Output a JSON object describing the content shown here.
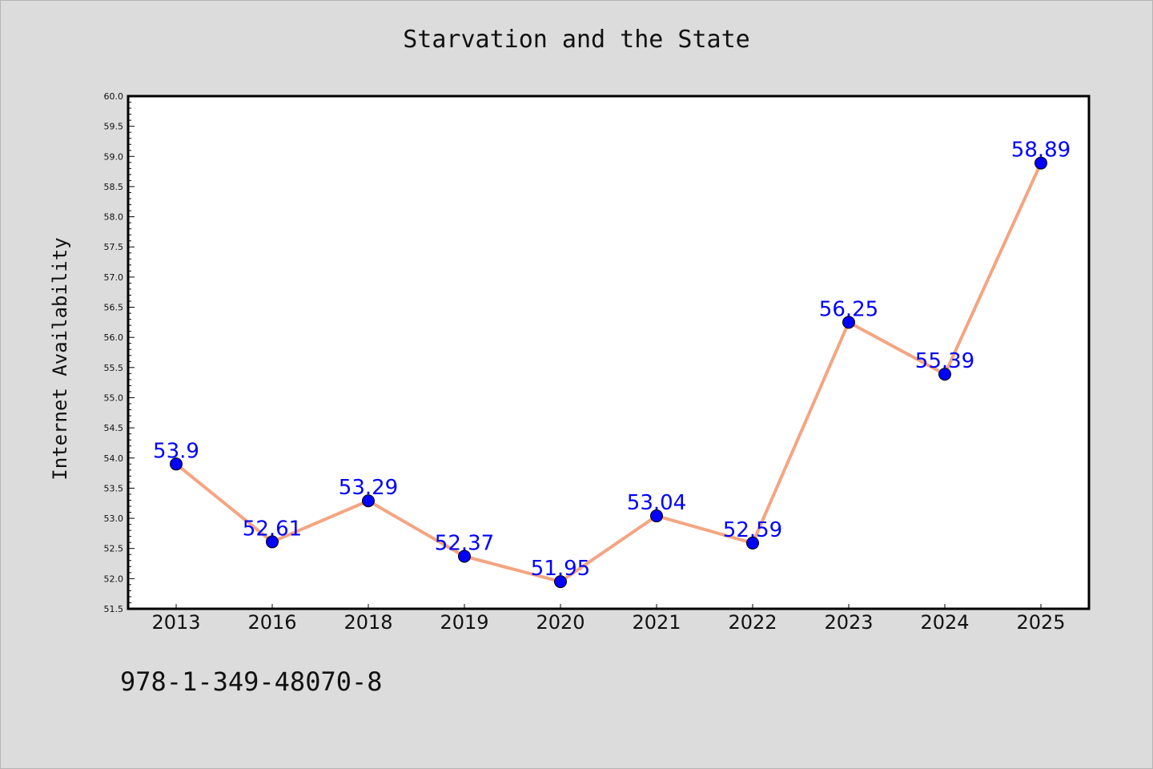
{
  "chart_data": {
    "type": "line",
    "title": "Starvation and the State",
    "xlabel": "",
    "ylabel": "Internet Availability",
    "categories": [
      "2013",
      "2016",
      "2018",
      "2019",
      "2020",
      "2021",
      "2022",
      "2023",
      "2024",
      "2025"
    ],
    "series": [
      {
        "values": [
          53.9,
          52.61,
          53.29,
          52.37,
          51.95,
          53.04,
          52.59,
          56.25,
          55.39,
          58.89
        ],
        "data_labels": [
          "53.9",
          "52.61",
          "53.29",
          "52.37",
          "51.95",
          "53.04",
          "52.59",
          "56.25",
          "55.39",
          "58.89"
        ]
      }
    ],
    "ylim": [
      51.5,
      60.0
    ],
    "y_ticks": [
      "51.5",
      "52.0",
      "52.5",
      "53.0",
      "53.5",
      "54.0",
      "54.5",
      "55.0",
      "55.5",
      "56.0",
      "56.5",
      "57.0",
      "57.5",
      "58.0",
      "58.5",
      "59.0",
      "59.5",
      "60.0"
    ],
    "grid": false,
    "colors": {
      "line": "#f4a582",
      "marker": "#0000ff",
      "data_label": "#0000ff",
      "plot_background": "#ffffff",
      "page_background": "#dcdcdc"
    }
  },
  "footer": {
    "text": "978-1-349-48070-8"
  }
}
